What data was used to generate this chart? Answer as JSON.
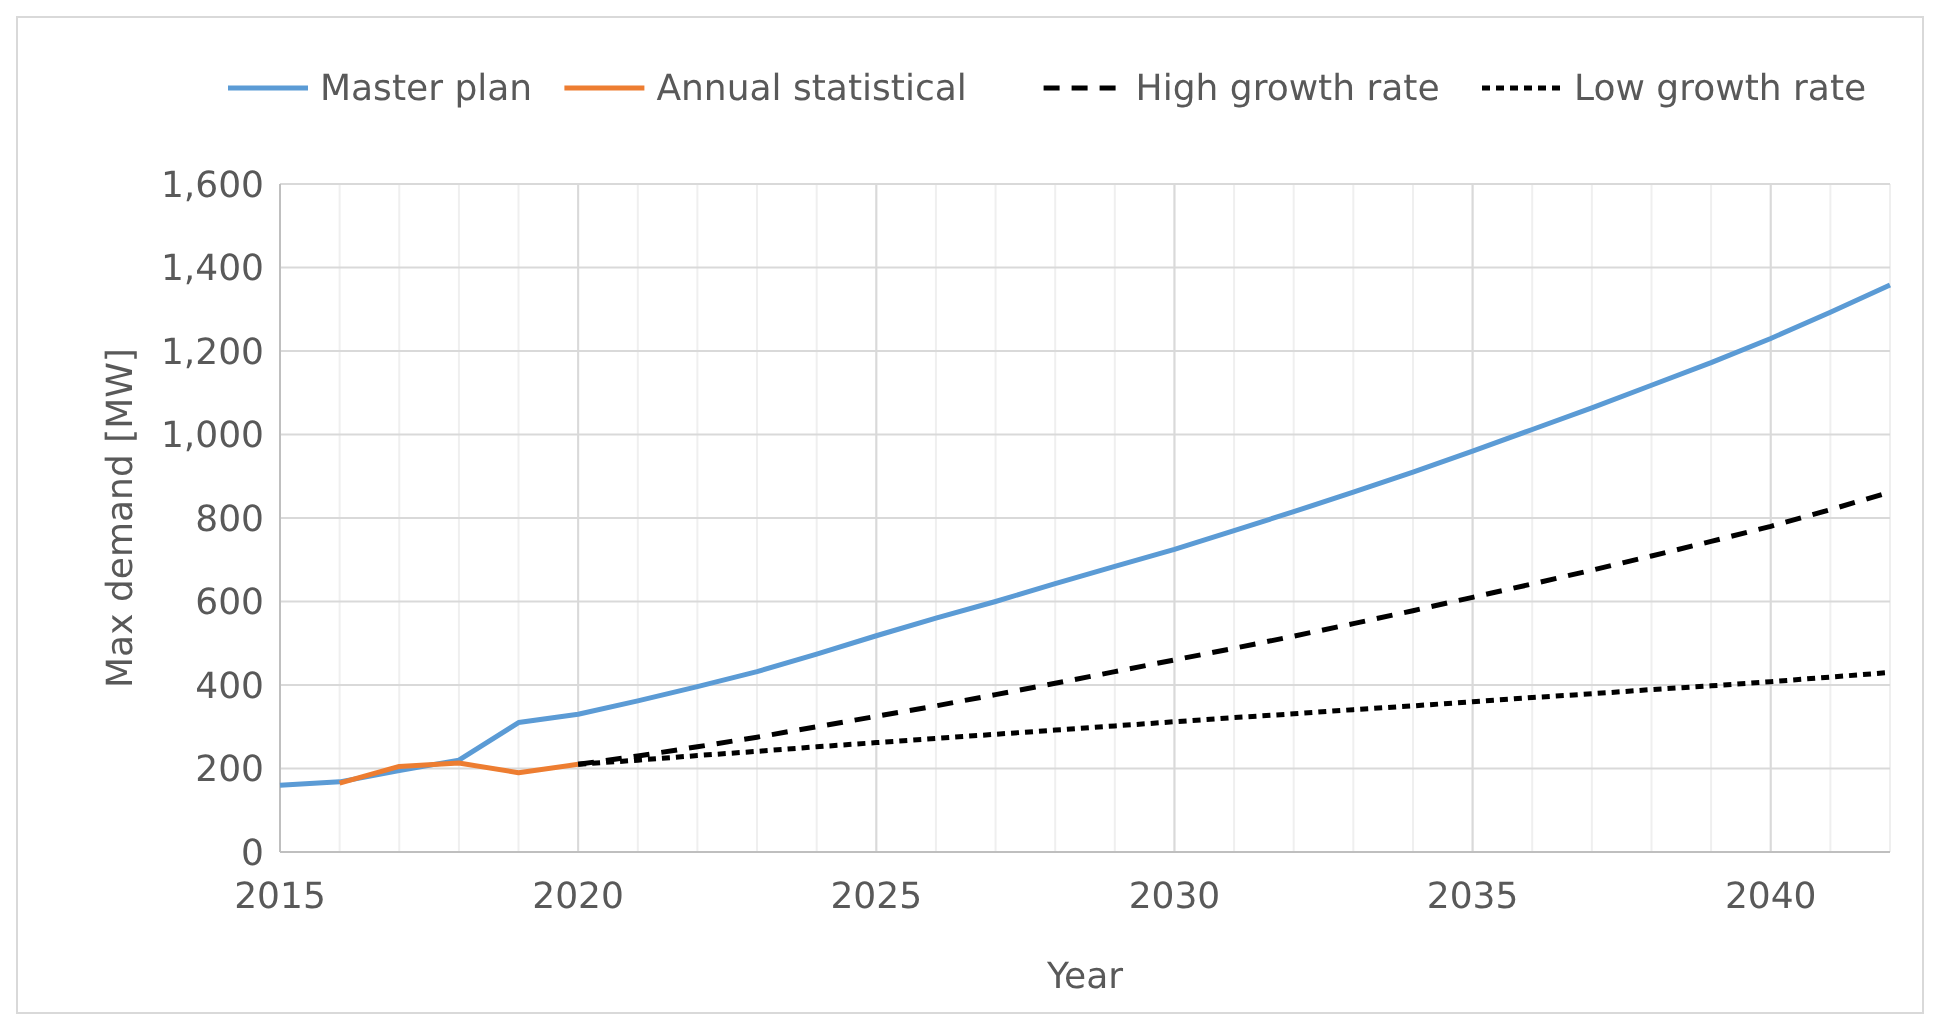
{
  "chart_data": {
    "type": "line",
    "xlabel": "Year",
    "ylabel": "Max demand [MW]",
    "xlim": [
      2015,
      2042
    ],
    "xticks": [
      2015,
      2020,
      2025,
      2030,
      2035,
      2040
    ],
    "ylim": [
      0,
      1600
    ],
    "yticks": [
      {
        "value": 0,
        "label": "0"
      },
      {
        "value": 200,
        "label": "200"
      },
      {
        "value": 400,
        "label": "400"
      },
      {
        "value": 600,
        "label": "600"
      },
      {
        "value": 800,
        "label": "800"
      },
      {
        "value": 1000,
        "label": "1,000"
      },
      {
        "value": 1200,
        "label": "1,200"
      },
      {
        "value": 1400,
        "label": "1,400"
      },
      {
        "value": 1600,
        "label": "1,600"
      }
    ],
    "grid": true,
    "legend": "top",
    "marker": "none",
    "series": [
      {
        "name": "Master plan",
        "color": "#5b9bd5",
        "line_style": "solid",
        "x": [
          2015,
          2016,
          2017,
          2018,
          2019,
          2020,
          2021,
          2022,
          2023,
          2024,
          2025,
          2026,
          2027,
          2028,
          2029,
          2030,
          2031,
          2032,
          2033,
          2034,
          2035,
          2036,
          2037,
          2038,
          2039,
          2040,
          2041,
          2042
        ],
        "values": [
          160,
          168,
          195,
          220,
          310,
          330,
          362,
          396,
          432,
          474,
          518,
          560,
          600,
          643,
          684,
          725,
          770,
          815,
          862,
          910,
          960,
          1012,
          1064,
          1118,
          1172,
          1230,
          1293,
          1358
        ]
      },
      {
        "name": "Annual statistical",
        "color": "#ed7d31",
        "line_style": "solid",
        "x": [
          2016,
          2017,
          2018,
          2019,
          2020
        ],
        "values": [
          165,
          205,
          213,
          190,
          210
        ]
      },
      {
        "name": "High growth rate",
        "color": "#000000",
        "line_style": "dashed",
        "x": [
          2020,
          2021,
          2022,
          2023,
          2024,
          2025,
          2026,
          2027,
          2028,
          2029,
          2030,
          2031,
          2032,
          2033,
          2034,
          2035,
          2036,
          2037,
          2038,
          2039,
          2040,
          2041,
          2042
        ],
        "values": [
          210,
          230,
          252,
          275,
          300,
          325,
          350,
          377,
          404,
          432,
          460,
          488,
          517,
          547,
          578,
          610,
          642,
          675,
          709,
          744,
          780,
          820,
          862
        ]
      },
      {
        "name": "Low growth rate",
        "color": "#000000",
        "line_style": "dotted",
        "x": [
          2020,
          2021,
          2022,
          2023,
          2024,
          2025,
          2026,
          2027,
          2028,
          2029,
          2030,
          2031,
          2032,
          2033,
          2034,
          2035,
          2036,
          2037,
          2038,
          2039,
          2040,
          2041,
          2042
        ],
        "values": [
          210,
          220,
          231,
          241,
          252,
          262,
          272,
          282,
          292,
          302,
          312,
          322,
          331,
          341,
          350,
          360,
          370,
          379,
          389,
          398,
          408,
          419,
          430
        ]
      }
    ]
  }
}
